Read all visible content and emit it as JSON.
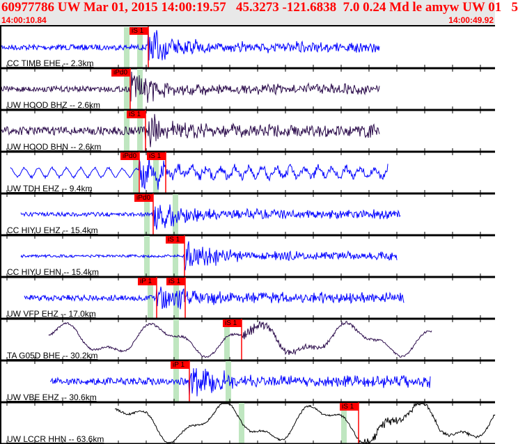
{
  "header": {
    "title": "60977786 UW Mar 01, 2015 14:00:19.57   45.3273 -121.6838  7.0 0.24 Md le amyw UW 01   5",
    "start_time": "14:00:10.84",
    "end_time": "14:00:49.92"
  },
  "colors": {
    "header_text": "#ff0000",
    "pick": "#ff0000",
    "theoretical_arrival": "#bfe6c0",
    "trace_blue": "#0000ff",
    "trace_purple": "#2a0a4a",
    "trace_black": "#000000"
  },
  "channels": [
    {
      "label": "CC TIMB EHE -- 2.3km",
      "picks": [
        {
          "label": "iS 1"
        }
      ]
    },
    {
      "label": "UW HOOD BHZ -- 2.6km",
      "picks": [
        {
          "label": "iPd0"
        }
      ]
    },
    {
      "label": "UW HOOD BHN -- 2.6km",
      "picks": [
        {
          "label": "iS 1"
        }
      ]
    },
    {
      "label": "UW TDH EHZ -- 9.4km",
      "picks": [
        {
          "label": "iPd0"
        },
        {
          "label": "iS 1"
        }
      ]
    },
    {
      "label": "CC HIYU EHZ -- 15.4km",
      "picks": [
        {
          "label": "iPd0"
        }
      ]
    },
    {
      "label": "CC HIYU EHN -- 15.4km",
      "picks": [
        {
          "label": "iS 1"
        }
      ]
    },
    {
      "label": "UW VFP EHZ -- 17.0km",
      "picks": [
        {
          "label": "iP 1"
        },
        {
          "label": "iS 1"
        }
      ]
    },
    {
      "label": "TA G05D BHE -- 30.2km",
      "picks": [
        {
          "label": "iS 1"
        }
      ]
    },
    {
      "label": "UW VBE EHZ -- 30.6km",
      "picks": [
        {
          "label": "iP 1"
        }
      ]
    },
    {
      "label": "UW LCCR HHN -- 63.6km",
      "picks": [
        {
          "label": "iS 1"
        }
      ]
    }
  ]
}
